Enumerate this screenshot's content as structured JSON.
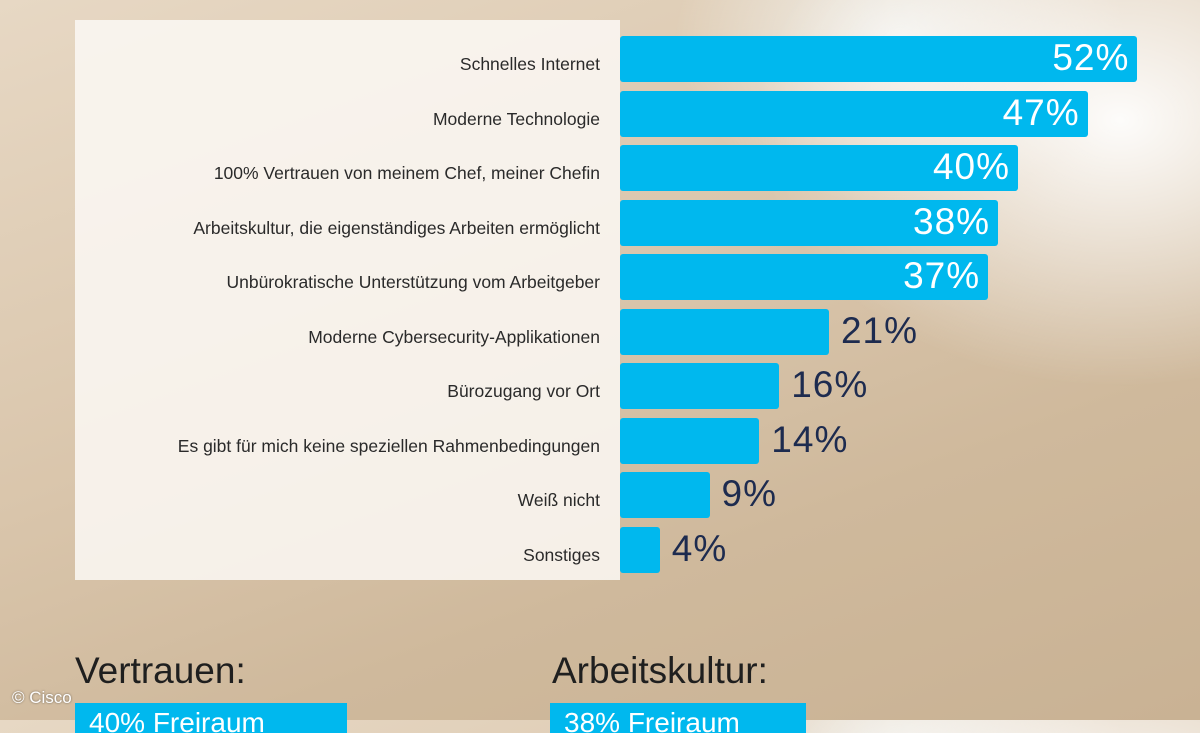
{
  "chart_data": {
    "type": "bar",
    "orientation": "horizontal",
    "categories": [
      "Schnelles Internet",
      "Moderne Technologie",
      "100% Vertrauen von meinem Chef, meiner Chefin",
      "Arbeitskultur, die eigenständiges Arbeiten ermöglicht",
      "Unbürokratische Unterstützung vom Arbeitgeber",
      "Moderne Cybersecurity-Applikationen",
      "Bürozugang vor Ort",
      "Es gibt für mich keine speziellen Rahmenbedingungen",
      "Weiß nicht",
      "Sonstiges"
    ],
    "values": [
      52,
      47,
      40,
      38,
      37,
      21,
      16,
      14,
      9,
      4
    ],
    "value_labels": [
      "52%",
      "47%",
      "40%",
      "38%",
      "37%",
      "21%",
      "16%",
      "14%",
      "9%",
      "4%"
    ],
    "bar_color": "#00b8ee",
    "value_color_inside": "#ffffff",
    "value_color_outside": "#1d2b4f"
  },
  "footer": {
    "left_title": "Vertrauen:",
    "left_tag": "40% Freiraum",
    "right_title": "Arbeitskultur:",
    "right_tag": "38% Freiraum",
    "credit": "© Cisco"
  }
}
